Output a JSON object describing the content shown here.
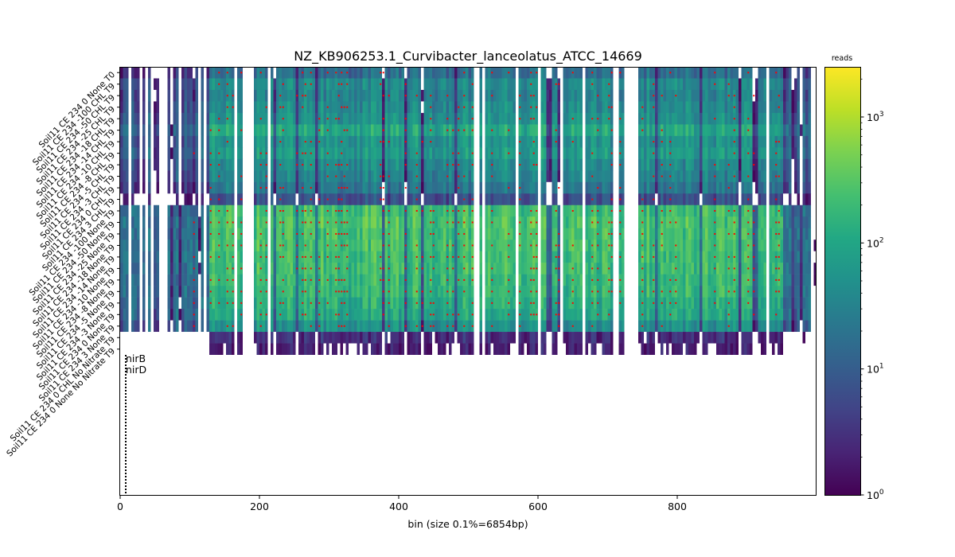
{
  "chart_data": {
    "type": "heatmap",
    "title": "NZ_KB906253.1_Curvibacter_lanceolatus_ATCC_14669",
    "xlabel": "bin (size 0.1%=6854bp)",
    "xlim": [
      0,
      1000
    ],
    "x_ticks": [
      0,
      200,
      400,
      600,
      800
    ],
    "rows": [
      "Soil11 CE 234 0 None T0",
      "Soil11 CE 234 -100 CHL T9",
      "Soil11 CE 234 -50 CHL T9",
      "Soil11 CE 234 -25 CHL T9",
      "Soil11 CE 234 -18 CHL T9",
      "Soil11 CE 234 -14 CHL T9",
      "Soil11 CE 234 -10 CHL T9",
      "Soil11 CE 234 -8 CHL T9",
      "Soil11 CE 234 -5 CHL T9",
      "Soil11 CE 234 -3 CHL T9",
      "Soil11 CE 234 0 CHL T9",
      "Soil11 CE 234 3 CHL T9",
      "Soil11 CE 234 -100 None T9",
      "Soil11 CE 234 -50 None T9",
      "Soil11 CE 234 -25 None T9",
      "Soil11 CE 234 -18 None T9",
      "Soil11 CE 234 -14 None T9",
      "Soil11 CE 234 -10 None T9",
      "Soil11 CE 234 -8 None T9",
      "Soil11 CE 234 -5 None T9",
      "Soil11 CE 234 -3 None T9",
      "Soil11 CE 234 0 None T9",
      "Soil11 CE 234 3 None T9",
      "Soil11 CE 234 0 CHL No Nitrate T9",
      "Soil11 CE 234 0 None No Nitrate T9"
    ],
    "colorbar": {
      "label": "reads",
      "scale": "log",
      "range": [
        1,
        2500
      ],
      "ticks": [
        {
          "value": 1,
          "base": "10",
          "exp": "0"
        },
        {
          "value": 10,
          "base": "10",
          "exp": "1"
        },
        {
          "value": 100,
          "base": "10",
          "exp": "2"
        },
        {
          "value": 1000,
          "base": "10",
          "exp": "3"
        }
      ],
      "colormap": "viridis"
    },
    "row_levels_log10": [
      1.2,
      1.6,
      1.5,
      1.6,
      1.7,
      2.0,
      1.7,
      1.8,
      1.6,
      1.5,
      1.3,
      0.8,
      2.3,
      2.4,
      2.35,
      2.35,
      2.3,
      2.3,
      2.25,
      2.2,
      2.1,
      2.0,
      1.7,
      0.4,
      0.2
    ],
    "gap_bins": [
      [
        175,
        190
      ],
      [
        210,
        215
      ],
      [
        505,
        512
      ],
      [
        708,
        712
      ],
      [
        722,
        740
      ]
    ],
    "marker_color": "#ff0000",
    "genes": [
      {
        "name": "nirB",
        "bin": 8
      },
      {
        "name": "nirD",
        "bin": 8
      }
    ]
  }
}
